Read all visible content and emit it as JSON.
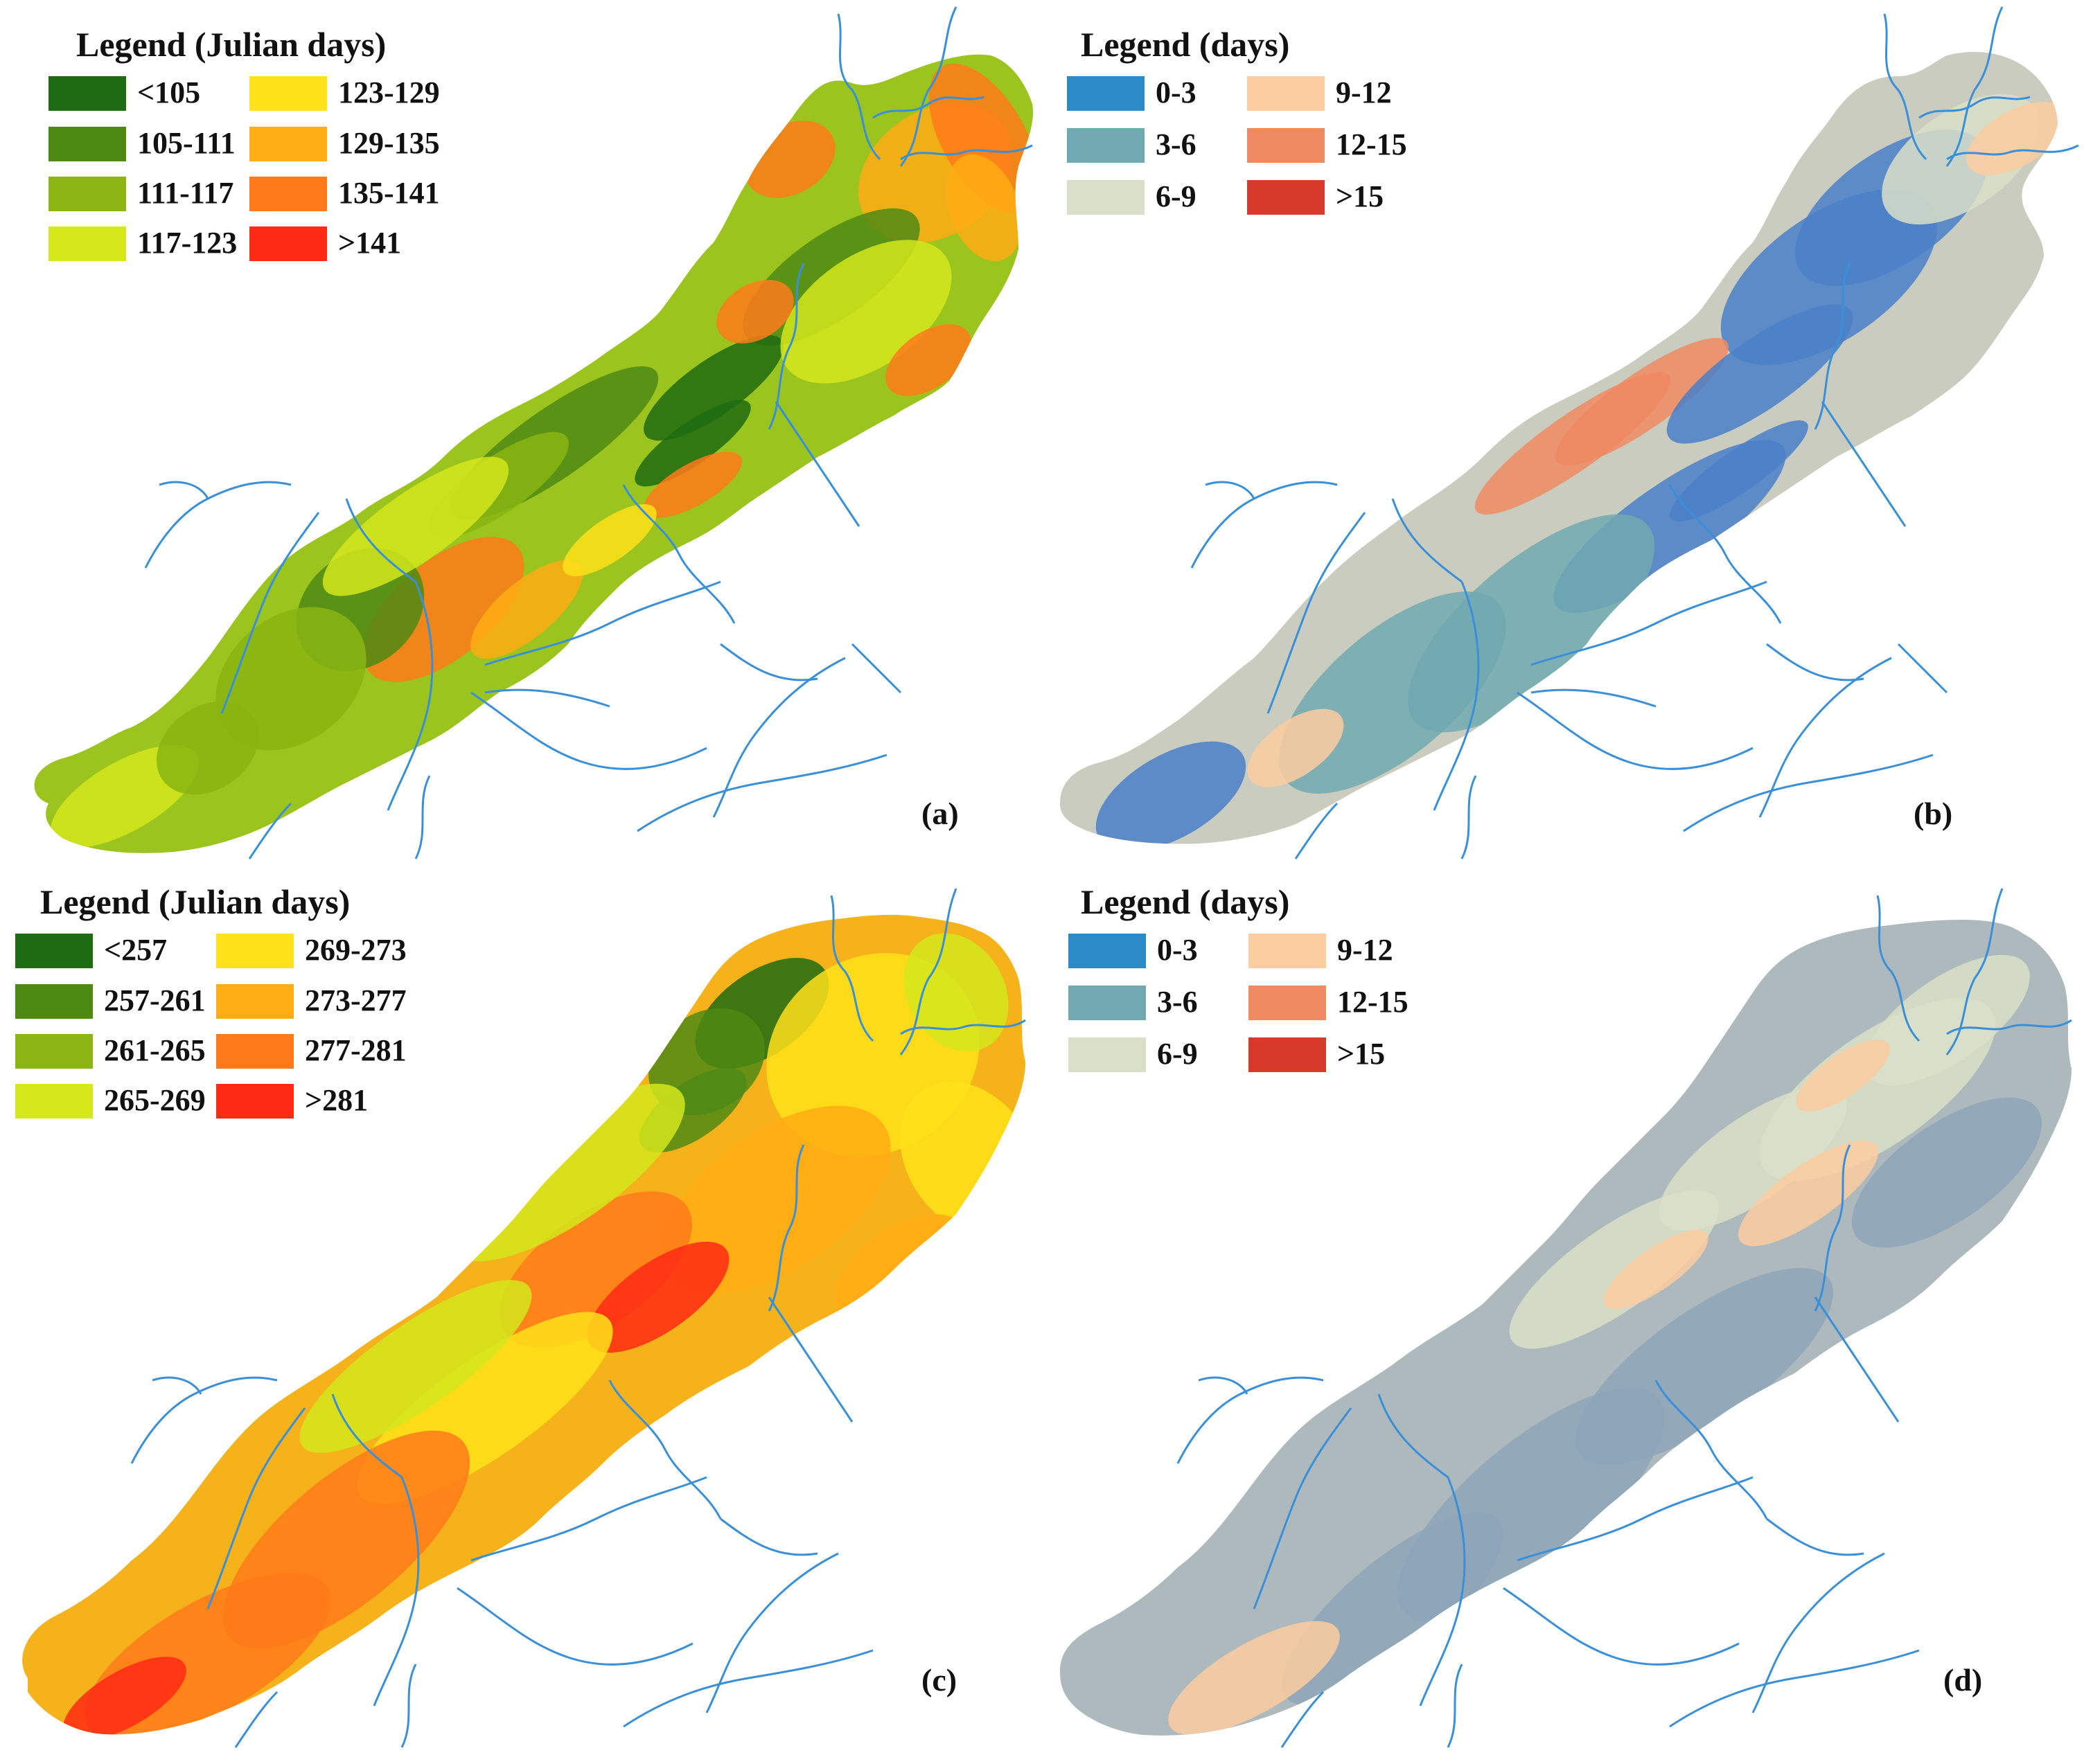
{
  "panels": [
    {
      "label": "(a)",
      "legend_title": "Legend (Julian days)",
      "scheme": "phenology",
      "legend_items": [
        {
          "label": "<105",
          "color": "#1e6b12"
        },
        {
          "label": "105-111",
          "color": "#4d8a14"
        },
        {
          "label": "111-117",
          "color": "#8ab512"
        },
        {
          "label": "117-123",
          "color": "#d4e81c"
        },
        {
          "label": "123-129",
          "color": "#ffe21a"
        },
        {
          "label": "129-135",
          "color": "#ffad14"
        },
        {
          "label": "135-141",
          "color": "#ff7a1a"
        },
        {
          "label": ">141",
          "color": "#ff2a14"
        }
      ]
    },
    {
      "label": "(b)",
      "legend_title": "Legend (days)",
      "scheme": "uncertainty",
      "legend_items": [
        {
          "label": "0-3",
          "color": "#2b8ac8"
        },
        {
          "label": "3-6",
          "color": "#71a9b0"
        },
        {
          "label": "6-9",
          "color": "#d9dfc8"
        },
        {
          "label": "9-12",
          "color": "#fccda0"
        },
        {
          "label": "12-15",
          "color": "#f08a62"
        },
        {
          "label": ">15",
          "color": "#d63a2a"
        }
      ]
    },
    {
      "label": "(c)",
      "legend_title": "Legend (Julian days)",
      "scheme": "phenology",
      "legend_items": [
        {
          "label": "<257",
          "color": "#1e6b12"
        },
        {
          "label": "257-261",
          "color": "#4d8a14"
        },
        {
          "label": "261-265",
          "color": "#8ab512"
        },
        {
          "label": "265-269",
          "color": "#d4e81c"
        },
        {
          "label": "269-273",
          "color": "#ffe21a"
        },
        {
          "label": "273-277",
          "color": "#ffad14"
        },
        {
          "label": "277-281",
          "color": "#ff7a1a"
        },
        {
          "label": ">281",
          "color": "#ff2a14"
        }
      ]
    },
    {
      "label": "(d)",
      "legend_title": "Legend (days)",
      "scheme": "uncertainty",
      "legend_items": [
        {
          "label": "0-3",
          "color": "#2b8ac8"
        },
        {
          "label": "3-6",
          "color": "#71a9b0"
        },
        {
          "label": "6-9",
          "color": "#d9dfc8"
        },
        {
          "label": "9-12",
          "color": "#fccda0"
        },
        {
          "label": "12-15",
          "color": "#f08a62"
        },
        {
          "label": ">15",
          "color": "#d63a2a"
        }
      ]
    }
  ],
  "colors": {
    "river": "#3a8fd9",
    "region_a_base": "#9bc41e",
    "region_b_base": "#c9ccbf",
    "region_c_base": "#f5b21a",
    "region_d_base": "#aeb9be"
  }
}
